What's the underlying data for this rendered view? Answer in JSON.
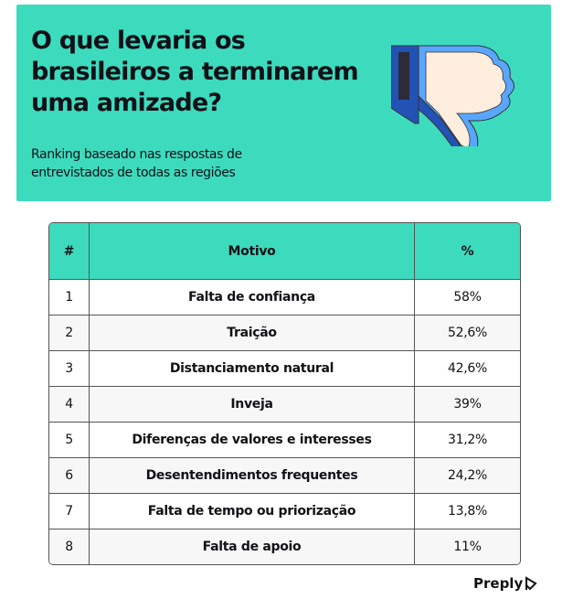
{
  "header": {
    "title": "O que levaria os brasileiros a terminarem uma amizade?",
    "subtitle": "Ranking baseado nas respostas de entrevistados de todas as regiões",
    "icon": "thumbs-down-icon",
    "background": "#3ddbbe"
  },
  "table": {
    "columns": [
      "#",
      "Motivo",
      "%"
    ],
    "rows": [
      {
        "rank": "1",
        "motivo": "Falta de confiança",
        "pct": "58%"
      },
      {
        "rank": "2",
        "motivo": "Traição",
        "pct": "52,6%"
      },
      {
        "rank": "3",
        "motivo": "Distanciamento natural",
        "pct": "42,6%"
      },
      {
        "rank": "4",
        "motivo": "Inveja",
        "pct": "39%"
      },
      {
        "rank": "5",
        "motivo": "Diferenças de valores e interesses",
        "pct": "31,2%"
      },
      {
        "rank": "6",
        "motivo": "Desentendimentos frequentes",
        "pct": "24,2%"
      },
      {
        "rank": "7",
        "motivo": "Falta de tempo ou priorização",
        "pct": "13,8%"
      },
      {
        "rank": "8",
        "motivo": "Falta de apoio",
        "pct": "11%"
      }
    ]
  },
  "footer": {
    "brand": "Preply"
  }
}
